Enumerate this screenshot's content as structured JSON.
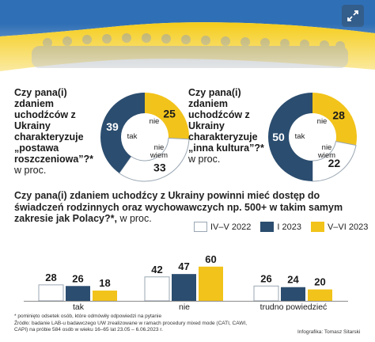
{
  "colors": {
    "white_series": "#ffffff",
    "blue": "#2b4d6f",
    "yellow": "#f2c31a",
    "outline": "#9aa7b3"
  },
  "icons": {
    "expand": "expand-arrows-icon"
  },
  "chart_data": [
    {
      "type": "pie",
      "title": "Czy pana(i) zdaniem uchodźców z Ukrainy charakteryzuje „postawa roszczeniowa”?*",
      "unit": "w proc.",
      "slices": [
        {
          "label": "tak",
          "value": 39,
          "color": "#2b4d6f"
        },
        {
          "label": "nie",
          "value": 25,
          "color": "#f2c31a"
        },
        {
          "label": "nie wiem",
          "value": 33,
          "color": "#ffffff"
        }
      ]
    },
    {
      "type": "pie",
      "title": "Czy pana(i) zdaniem uchodźców z Ukrainy charakteryzuje „inna kultura”?*",
      "unit": "w proc.",
      "slices": [
        {
          "label": "tak",
          "value": 50,
          "color": "#2b4d6f"
        },
        {
          "label": "nie",
          "value": 28,
          "color": "#f2c31a"
        },
        {
          "label": "nie wiem",
          "value": 22,
          "color": "#ffffff"
        }
      ]
    },
    {
      "type": "bar",
      "title": "Czy pana(i) zdaniem uchodźcy z Ukrainy powinni mieć dostęp do świadczeń rodzinnych oraz wychowawczych np. 500+ w takim samym zakresie jak Polacy?*,",
      "unit": "w proc.",
      "categories": [
        "tak",
        "nie",
        "trudno powiedzieć"
      ],
      "series": [
        {
          "name": "IV–V 2022",
          "color": "#ffffff",
          "values": [
            28,
            42,
            26
          ]
        },
        {
          "name": "I 2023",
          "color": "#2b4d6f",
          "values": [
            26,
            47,
            24
          ]
        },
        {
          "name": "V–VI 2023",
          "color": "#f2c31a",
          "values": [
            18,
            60,
            20
          ]
        }
      ]
    }
  ],
  "footnotes": {
    "note": "* pominięto odsetek osób, które odmówiły odpowiedzi na pytanie",
    "source": "Źródło: badanie LAB-u badawczego UW zrealizowane w ramach procedury mixed mode (CATI, CAWI, CAPI) na próbie 584 osób w wieku 16–65 lat 23.05 – 6.06.2023 r.",
    "credit": "Infografika: Tomasz Sitarski"
  }
}
